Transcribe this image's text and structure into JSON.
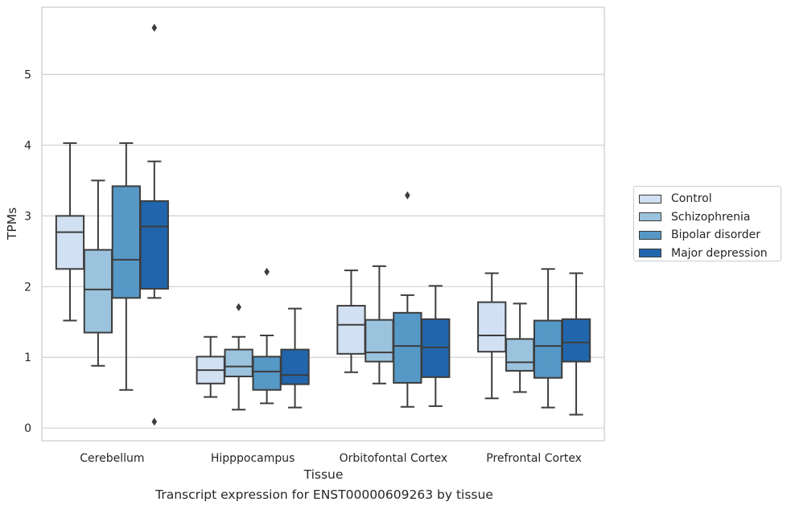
{
  "caption": "Transcript expression for ENST00000609263 by tissue",
  "chart_data": {
    "type": "boxplot",
    "title": "",
    "xlabel": "Tissue",
    "ylabel": "TPMs",
    "ylim": [
      -0.18,
      5.95
    ],
    "yticks": [
      0,
      1,
      2,
      3,
      4,
      5
    ],
    "grid": true,
    "legend_position": "right",
    "categories": [
      "Cerebellum",
      "Hipppocampus",
      "Orbitofontal Cortex",
      "Prefrontal Cortex"
    ],
    "series": [
      {
        "name": "Control",
        "color": "#d1e0f2",
        "boxes": [
          {
            "whislo": 1.52,
            "q1": 2.25,
            "med": 2.77,
            "q3": 3.0,
            "whishi": 4.03,
            "fliers": []
          },
          {
            "whislo": 0.44,
            "q1": 0.63,
            "med": 0.82,
            "q3": 1.01,
            "whishi": 1.29,
            "fliers": []
          },
          {
            "whislo": 0.79,
            "q1": 1.05,
            "med": 1.46,
            "q3": 1.73,
            "whishi": 2.23,
            "fliers": []
          },
          {
            "whislo": 0.42,
            "q1": 1.08,
            "med": 1.31,
            "q3": 1.78,
            "whishi": 2.19,
            "fliers": []
          }
        ]
      },
      {
        "name": "Schizophrenia",
        "color": "#9cc3dd",
        "boxes": [
          {
            "whislo": 0.88,
            "q1": 1.35,
            "med": 1.96,
            "q3": 2.52,
            "whishi": 3.5,
            "fliers": []
          },
          {
            "whislo": 0.26,
            "q1": 0.73,
            "med": 0.87,
            "q3": 1.11,
            "whishi": 1.29,
            "fliers": [
              1.71
            ]
          },
          {
            "whislo": 0.63,
            "q1": 0.94,
            "med": 1.07,
            "q3": 1.53,
            "whishi": 2.29,
            "fliers": []
          },
          {
            "whislo": 0.51,
            "q1": 0.81,
            "med": 0.93,
            "q3": 1.26,
            "whishi": 1.76,
            "fliers": []
          }
        ]
      },
      {
        "name": "Bipolar disorder",
        "color": "#5698c6",
        "boxes": [
          {
            "whislo": 0.54,
            "q1": 1.84,
            "med": 2.38,
            "q3": 3.42,
            "whishi": 4.03,
            "fliers": []
          },
          {
            "whislo": 0.35,
            "q1": 0.54,
            "med": 0.8,
            "q3": 1.01,
            "whishi": 1.31,
            "fliers": [
              2.21
            ]
          },
          {
            "whislo": 0.3,
            "q1": 0.64,
            "med": 1.16,
            "q3": 1.63,
            "whishi": 1.88,
            "fliers": [
              3.29
            ]
          },
          {
            "whislo": 0.29,
            "q1": 0.71,
            "med": 1.16,
            "q3": 1.52,
            "whishi": 2.25,
            "fliers": []
          }
        ]
      },
      {
        "name": "Major depression",
        "color": "#2166ac",
        "boxes": [
          {
            "whislo": 1.84,
            "q1": 1.97,
            "med": 2.85,
            "q3": 3.21,
            "whishi": 3.77,
            "fliers": [
              5.66,
              0.09
            ]
          },
          {
            "whislo": 0.29,
            "q1": 0.62,
            "med": 0.75,
            "q3": 1.11,
            "whishi": 1.69,
            "fliers": []
          },
          {
            "whislo": 0.31,
            "q1": 0.72,
            "med": 1.14,
            "q3": 1.54,
            "whishi": 2.01,
            "fliers": []
          },
          {
            "whislo": 0.19,
            "q1": 0.94,
            "med": 1.21,
            "q3": 1.54,
            "whishi": 2.19,
            "fliers": []
          }
        ]
      }
    ]
  }
}
